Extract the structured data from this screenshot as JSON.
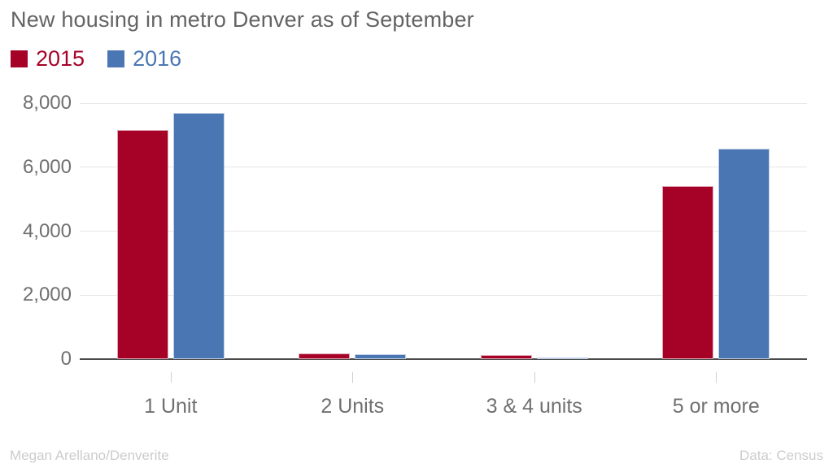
{
  "chart_data": {
    "type": "bar",
    "title": "New housing in metro Denver as of September",
    "categories": [
      "1 Unit",
      "2 Units",
      "3 & 4 units",
      "5 or more"
    ],
    "series": [
      {
        "name": "2015",
        "color": "#a60228",
        "values": [
          7150,
          190,
          130,
          5400
        ]
      },
      {
        "name": "2016",
        "color": "#4a76b4",
        "values": [
          7700,
          160,
          60,
          6580
        ]
      }
    ],
    "xlabel": "",
    "ylabel": "",
    "ylim": [
      0,
      8000
    ],
    "yticks": [
      0,
      2000,
      4000,
      6000,
      8000
    ],
    "ytick_labels": [
      "0",
      "2,000",
      "4,000",
      "6,000",
      "8,000"
    ],
    "grid": true,
    "legend_position": "top-left"
  },
  "footer": {
    "credit": "Megan Arellano/Denverite",
    "source": "Data: Census"
  },
  "colors": {
    "series_2015": "#a60228",
    "series_2016": "#4a76b4",
    "title_text": "#636363",
    "axis_text": "#707070",
    "gridline": "#e6e6e6",
    "axis_line": "#4a4a4a",
    "footer_text": "#cccccc",
    "background": "#ffffff"
  }
}
